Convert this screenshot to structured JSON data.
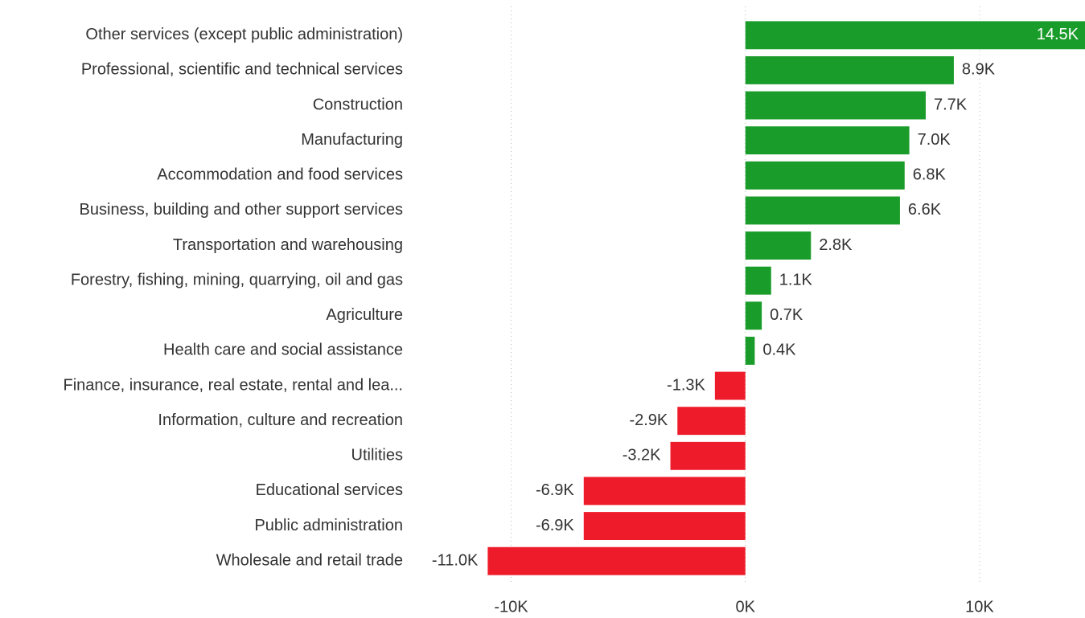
{
  "chart_data": {
    "type": "bar",
    "orientation": "horizontal",
    "categories": [
      "Other services (except public administration)",
      "Professional, scientific and technical services",
      "Construction",
      "Manufacturing",
      "Accommodation and food services",
      "Business, building and other support services",
      "Transportation and warehousing",
      "Forestry, fishing, mining, quarrying, oil and gas",
      "Agriculture",
      "Health care and social assistance",
      "Finance, insurance, real estate, rental and lea...",
      "Information, culture and recreation",
      "Utilities",
      "Educational services",
      "Public administration",
      "Wholesale and retail trade"
    ],
    "values": [
      14500,
      8900,
      7700,
      7000,
      6800,
      6600,
      2800,
      1100,
      700,
      400,
      -1300,
      -2900,
      -3200,
      -6900,
      -6900,
      -11000
    ],
    "value_labels": [
      "14.5K",
      "8.9K",
      "7.7K",
      "7.0K",
      "6.8K",
      "6.6K",
      "2.8K",
      "1.1K",
      "0.7K",
      "0.4K",
      "-1.3K",
      "-2.9K",
      "-3.2K",
      "-6.9K",
      "-6.9K",
      "-11.0K"
    ],
    "positive_color": "#1a9c2a",
    "negative_color": "#ee1c2a",
    "xlim": [
      -14000,
      14500
    ],
    "xticks": [
      {
        "value": -10000,
        "label": "-10K"
      },
      {
        "value": 0,
        "label": "0K"
      },
      {
        "value": 10000,
        "label": "10K"
      }
    ],
    "grid": true
  }
}
